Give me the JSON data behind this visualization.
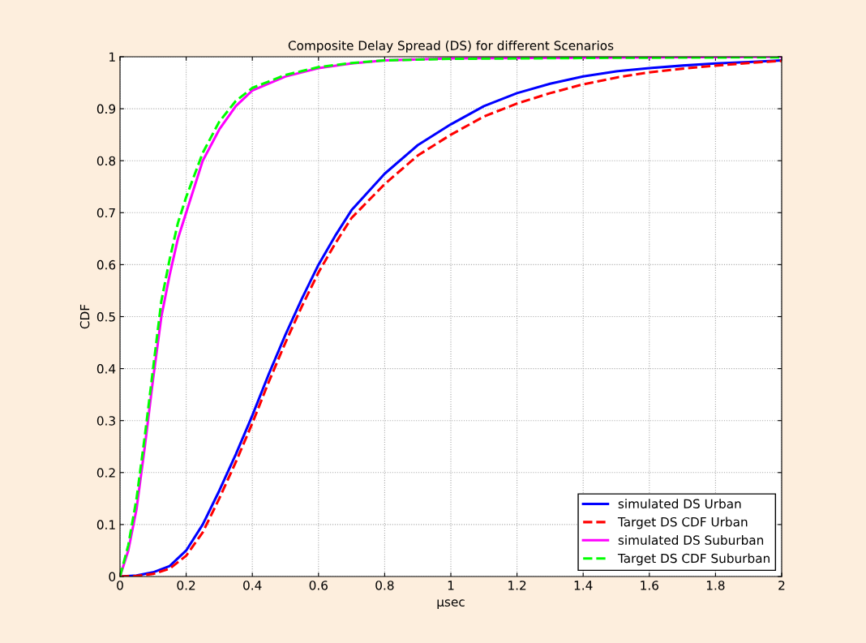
{
  "chart_data": {
    "type": "line",
    "title": "Composite Delay Spread (DS) for different Scenarios",
    "xlabel": "µsec",
    "ylabel": "CDF",
    "xlim": [
      0,
      2
    ],
    "ylim": [
      0,
      1
    ],
    "xticks": [
      0,
      0.2,
      0.4,
      0.6,
      0.8,
      1,
      1.2,
      1.4,
      1.6,
      1.8,
      2
    ],
    "yticks": [
      0,
      0.1,
      0.2,
      0.3,
      0.4,
      0.5,
      0.6,
      0.7,
      0.8,
      0.9,
      1
    ],
    "grid": true,
    "legend": "bottom right",
    "series": [
      {
        "name": "simulated DS Urban",
        "color": "#0000ff",
        "line_style": "solid",
        "x": [
          0,
          0.05,
          0.1,
          0.15,
          0.2,
          0.25,
          0.3,
          0.35,
          0.4,
          0.45,
          0.5,
          0.55,
          0.6,
          0.65,
          0.7,
          0.8,
          0.9,
          1.0,
          1.1,
          1.2,
          1.3,
          1.4,
          1.5,
          1.6,
          1.7,
          1.8,
          1.9,
          2.0
        ],
        "values": [
          0,
          0.002,
          0.008,
          0.02,
          0.05,
          0.1,
          0.165,
          0.235,
          0.31,
          0.39,
          0.465,
          0.535,
          0.6,
          0.655,
          0.705,
          0.775,
          0.83,
          0.87,
          0.905,
          0.93,
          0.948,
          0.962,
          0.972,
          0.978,
          0.983,
          0.987,
          0.99,
          0.993
        ]
      },
      {
        "name": "Target DS CDF Urban",
        "color": "#ff0000",
        "line_style": "dashed",
        "x": [
          0,
          0.05,
          0.1,
          0.15,
          0.2,
          0.25,
          0.3,
          0.35,
          0.4,
          0.45,
          0.5,
          0.55,
          0.6,
          0.65,
          0.7,
          0.8,
          0.9,
          1.0,
          1.1,
          1.2,
          1.3,
          1.4,
          1.5,
          1.6,
          1.7,
          1.8,
          1.9,
          2.0
        ],
        "values": [
          0,
          0.001,
          0.005,
          0.015,
          0.04,
          0.085,
          0.15,
          0.22,
          0.295,
          0.375,
          0.45,
          0.52,
          0.585,
          0.64,
          0.69,
          0.755,
          0.81,
          0.85,
          0.885,
          0.91,
          0.93,
          0.947,
          0.96,
          0.97,
          0.977,
          0.983,
          0.988,
          0.992
        ]
      },
      {
        "name": "simulated DS Suburban",
        "color": "#ff00ff",
        "line_style": "solid",
        "x": [
          0,
          0.025,
          0.05,
          0.075,
          0.1,
          0.125,
          0.15,
          0.175,
          0.2,
          0.25,
          0.3,
          0.35,
          0.4,
          0.5,
          0.6,
          0.7,
          0.8,
          1.0,
          2.0
        ],
        "values": [
          0,
          0.05,
          0.13,
          0.25,
          0.38,
          0.5,
          0.58,
          0.65,
          0.7,
          0.8,
          0.86,
          0.905,
          0.935,
          0.962,
          0.978,
          0.987,
          0.993,
          0.997,
          1.0
        ]
      },
      {
        "name": "Target DS CDF Suburban",
        "color": "#00ff00",
        "line_style": "dashed",
        "x": [
          0,
          0.025,
          0.05,
          0.075,
          0.1,
          0.125,
          0.15,
          0.175,
          0.2,
          0.25,
          0.3,
          0.35,
          0.4,
          0.5,
          0.6,
          0.7,
          0.8,
          1.0,
          1.5,
          2.0
        ],
        "values": [
          0,
          0.06,
          0.15,
          0.27,
          0.4,
          0.53,
          0.61,
          0.68,
          0.73,
          0.815,
          0.875,
          0.915,
          0.94,
          0.965,
          0.98,
          0.988,
          0.993,
          0.996,
          0.998,
          0.999
        ]
      }
    ]
  }
}
